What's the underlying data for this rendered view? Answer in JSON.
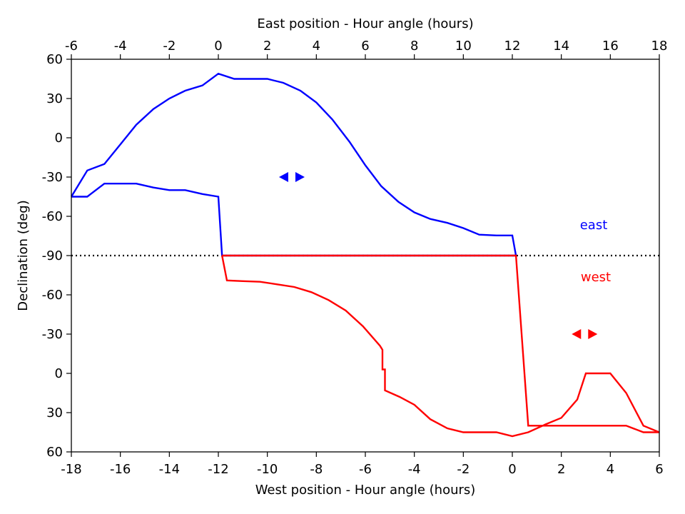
{
  "chart_data": {
    "type": "line",
    "top_axis": {
      "label": "East position - Hour angle (hours)",
      "range": [
        -6,
        18
      ],
      "ticks": [
        "-6",
        "-4",
        "-2",
        "0",
        "2",
        "4",
        "6",
        "8",
        "10",
        "12",
        "14",
        "16",
        "18"
      ]
    },
    "bottom_axis": {
      "label": "West position - Hour angle (hours)",
      "range": [
        -18,
        6
      ],
      "ticks": [
        "-18",
        "-16",
        "-14",
        "-12",
        "-10",
        "-8",
        "-6",
        "-4",
        "-2",
        "0",
        "2",
        "4",
        "6"
      ]
    },
    "y_axis": {
      "label": "Declination (deg)",
      "ticks": [
        "60",
        "30",
        "0",
        "-30",
        "-60",
        "-90",
        "-60",
        "-30",
        "0",
        "30",
        "60"
      ]
    },
    "reference_line": {
      "style": "dotted",
      "color": "#000000",
      "label": "-90"
    },
    "annotations": [
      {
        "text": "east",
        "color": "#0000ff"
      },
      {
        "text": "west",
        "color": "#ff0000"
      }
    ],
    "series": [
      {
        "name": "east",
        "color": "#0000ff",
        "points": [
          [
            -6,
            -45
          ],
          [
            -5.35,
            -25
          ],
          [
            -4.65,
            -20
          ],
          [
            -4,
            -5
          ],
          [
            -3.35,
            10
          ],
          [
            -2.65,
            22
          ],
          [
            -2,
            30
          ],
          [
            -1.35,
            36
          ],
          [
            -0.65,
            40
          ],
          [
            0,
            49
          ],
          [
            0.65,
            45
          ],
          [
            1,
            45
          ],
          [
            2,
            45
          ],
          [
            2.65,
            42
          ],
          [
            3.35,
            36
          ],
          [
            4,
            27
          ],
          [
            4.65,
            14
          ],
          [
            5.35,
            -3
          ],
          [
            6,
            -21
          ],
          [
            6.65,
            -37
          ],
          [
            7.35,
            -49
          ],
          [
            8,
            -57
          ],
          [
            8.65,
            -62
          ],
          [
            9.35,
            -65
          ],
          [
            10,
            -69
          ],
          [
            10.65,
            -74
          ],
          [
            11.35,
            -74.6
          ],
          [
            12,
            -74.6
          ],
          [
            12.15,
            -90
          ],
          [
            0.15,
            -90
          ],
          [
            0,
            -45
          ],
          [
            -0.65,
            -43
          ],
          [
            -1.35,
            -40
          ],
          [
            -2,
            -40
          ],
          [
            -2.65,
            -38
          ],
          [
            -3.35,
            -35
          ],
          [
            -4,
            -35
          ],
          [
            -4.65,
            -35
          ],
          [
            -5.35,
            -45
          ],
          [
            -6,
            -45
          ]
        ],
        "marker_arrows": {
          "x": 3,
          "y": -30
        }
      },
      {
        "name": "west",
        "color": "#ff0000",
        "points": [
          [
            -11.85,
            -90
          ],
          [
            -11.65,
            -71
          ],
          [
            -11,
            -70.5
          ],
          [
            -10.3,
            -70
          ],
          [
            -9.6,
            -68
          ],
          [
            -8.9,
            -66
          ],
          [
            -8.2,
            -62
          ],
          [
            -7.5,
            -56
          ],
          [
            -6.8,
            -48
          ],
          [
            -6.1,
            -36
          ],
          [
            -5.4,
            -21
          ],
          [
            -5.3,
            -18
          ],
          [
            -5.3,
            -3
          ],
          [
            -5.2,
            -3
          ],
          [
            -5.2,
            13
          ],
          [
            -4.6,
            18
          ],
          [
            -4,
            24
          ],
          [
            -3.35,
            35
          ],
          [
            -2.65,
            42
          ],
          [
            -2,
            45
          ],
          [
            -1.35,
            45
          ],
          [
            -0.65,
            45
          ],
          [
            0,
            48
          ],
          [
            0.65,
            45
          ],
          [
            1.35,
            39
          ],
          [
            2,
            34
          ],
          [
            2.65,
            20
          ],
          [
            3,
            0
          ],
          [
            3.35,
            0
          ],
          [
            4,
            0
          ],
          [
            4.65,
            15
          ],
          [
            5.35,
            40
          ],
          [
            6,
            45
          ],
          [
            5.35,
            45
          ],
          [
            4.65,
            40
          ],
          [
            4,
            40
          ],
          [
            3.35,
            40
          ],
          [
            2.65,
            40
          ],
          [
            2,
            40
          ],
          [
            1.35,
            40
          ],
          [
            0.65,
            40
          ],
          [
            0.15,
            -90
          ],
          [
            -11.85,
            -90
          ]
        ],
        "marker_arrows": {
          "x": 2.95,
          "y": -30
        }
      }
    ]
  }
}
